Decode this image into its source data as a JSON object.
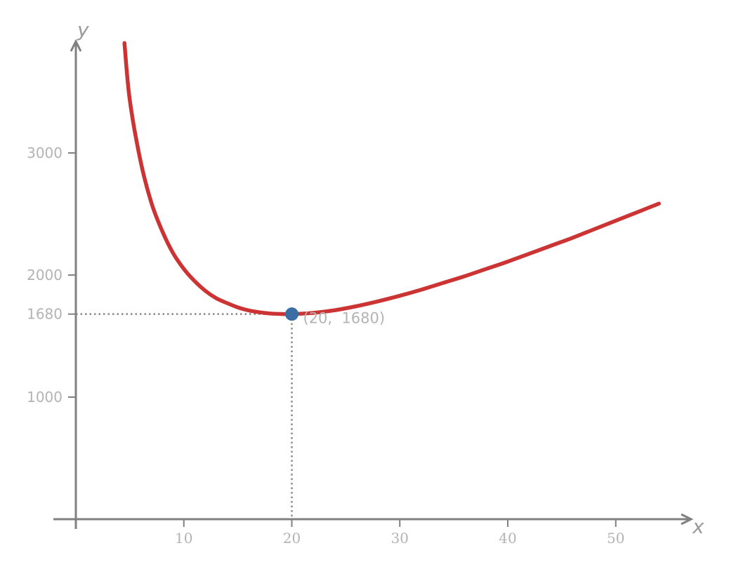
{
  "chart_data": {
    "type": "line",
    "title": "",
    "xlabel": "x",
    "ylabel": "y",
    "xlim": [
      -2,
      57
    ],
    "ylim": [
      0,
      3900
    ],
    "x_ticks": [
      10,
      20,
      30,
      40,
      50
    ],
    "y_ticks": [
      1000,
      1680,
      2000,
      3000
    ],
    "x_tick_labels": [
      "10",
      "20",
      "30",
      "40",
      "50"
    ],
    "y_tick_labels": [
      "1000",
      "1680",
      "2000",
      "3000"
    ],
    "series": [
      {
        "color": "#cc3333",
        "x": [
          4.5,
          5,
          6,
          7,
          8,
          9,
          10,
          11,
          12,
          13,
          14,
          15,
          16,
          17,
          18,
          19,
          20,
          22,
          24,
          26,
          28,
          30,
          32,
          34,
          36,
          38,
          40,
          42,
          44,
          46,
          48,
          50,
          52,
          54
        ],
        "y": [
          3900,
          3430,
          2930,
          2590,
          2360,
          2180,
          2050,
          1950,
          1870,
          1810,
          1770,
          1735,
          1710,
          1695,
          1685,
          1681,
          1680,
          1690,
          1712,
          1745,
          1785,
          1830,
          1880,
          1935,
          1990,
          2050,
          2110,
          2175,
          2240,
          2305,
          2375,
          2445,
          2515,
          2585
        ]
      }
    ],
    "highlight_point": {
      "x": 20,
      "y": 1680,
      "label": "(20,  1680)",
      "color": "#3a6ea5"
    },
    "guide_lines": "dotted",
    "grid": false,
    "legend": "none"
  }
}
